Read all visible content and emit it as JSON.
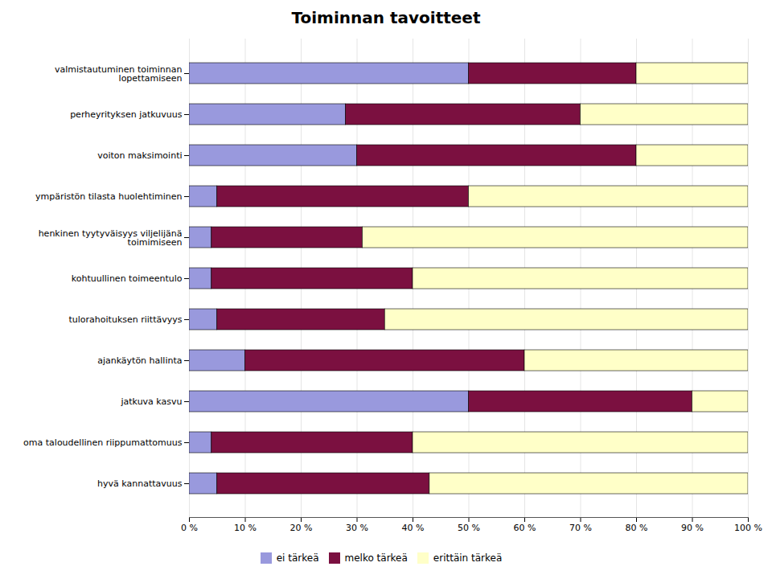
{
  "chart_data": {
    "type": "bar",
    "title": "Toiminnan tavoitteet",
    "orientation": "horizontal",
    "stacked": true,
    "categories": [
      "hyvä kannattavuus",
      "oma taloudellinen riippumattomuus",
      "jatkuva kasvu",
      "ajankäytön hallinta",
      "tulorahoituksen riittävyys",
      "kohtuullinen toimeentulo",
      "henkinen tyytyväisyys viljelijänä\ntoimimiseen",
      "ympäristön tilasta huolehtiminen",
      "voiton maksimointi",
      "perheyrityksen jatkuvuus",
      "valmistautuminen toiminnan\nlopettamiseen"
    ],
    "series": [
      {
        "name": "ei tärkeä",
        "color": "#9999dd",
        "values": [
          5,
          4,
          50,
          10,
          5,
          4,
          4,
          5,
          30,
          28,
          50
        ]
      },
      {
        "name": "melko tärkeä",
        "color": "#7b1040",
        "values": [
          38,
          36,
          40,
          50,
          30,
          36,
          27,
          45,
          50,
          42,
          30
        ]
      },
      {
        "name": "erittäin tärkeä",
        "color": "#ffffc8",
        "values": [
          57,
          60,
          10,
          40,
          65,
          60,
          69,
          50,
          20,
          30,
          20
        ]
      }
    ],
    "xlim": [
      0,
      100
    ],
    "xticks": [
      {
        "value": 0,
        "label": "0 %"
      },
      {
        "value": 10,
        "label": "10 %"
      },
      {
        "value": 20,
        "label": "20 %"
      },
      {
        "value": 30,
        "label": "30 %"
      },
      {
        "value": 40,
        "label": "40 %"
      },
      {
        "value": 50,
        "label": "50 %"
      },
      {
        "value": 60,
        "label": "60 %"
      },
      {
        "value": 70,
        "label": "70 %"
      },
      {
        "value": 80,
        "label": "80 %"
      },
      {
        "value": 90,
        "label": "90 %"
      },
      {
        "value": 100,
        "label": "100 %"
      }
    ],
    "grid": true,
    "legend": "bottom"
  }
}
